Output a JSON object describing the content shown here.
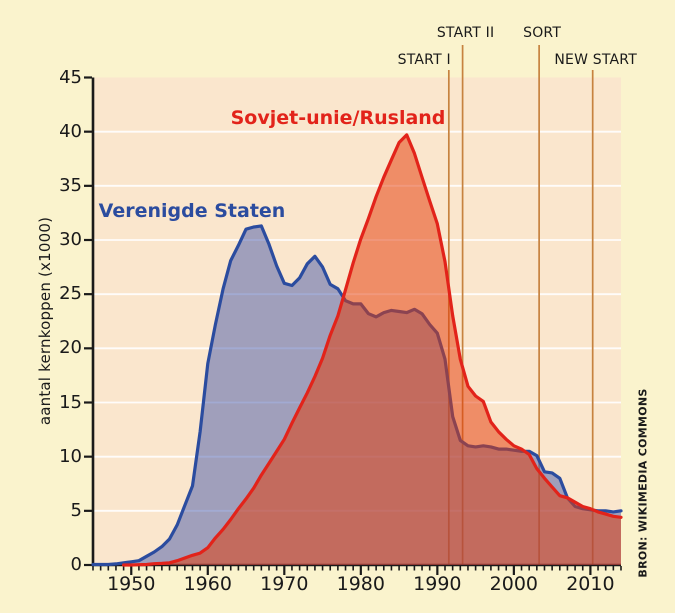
{
  "page": {
    "background_color": "#FAF3CD",
    "text_color": "#1a1a1a"
  },
  "chart_data": {
    "type": "area",
    "title": "",
    "ylabel": "aantal kernkoppen (x1000)",
    "source": "BRON: WIKIMEDIA COMMONS",
    "ylim": [
      0,
      45
    ],
    "y_ticks": [
      0,
      5,
      10,
      15,
      20,
      25,
      30,
      35,
      40,
      45
    ],
    "x_range": [
      1945,
      2014
    ],
    "x_tick_years": [
      1950,
      1960,
      1970,
      1980,
      1990,
      2000,
      2010
    ],
    "grid": "horizontal white lines every 5 units",
    "plot_bg": "#FAE6CD",
    "gridline_color": "#FFFFFF",
    "axis_color": "#1a1a1a",
    "treaty_line_color": "#C6823F",
    "series": [
      {
        "name": "Verenigde Staten",
        "start_year": 1945,
        "line_color": "#2B4C9F",
        "fill_color": "rgba(70,88,170,0.5)",
        "values": [
          0.05,
          0.05,
          0.05,
          0.1,
          0.2,
          0.3,
          0.4,
          0.8,
          1.2,
          1.7,
          2.4,
          3.7,
          5.5,
          7.3,
          12.3,
          18.6,
          22.2,
          25.5,
          28.1,
          29.5,
          31.0,
          31.2,
          31.3,
          29.6,
          27.6,
          26.0,
          25.8,
          26.5,
          27.8,
          28.5,
          27.5,
          25.9,
          25.5,
          24.4,
          24.1,
          24.1,
          23.2,
          22.9,
          23.3,
          23.5,
          23.4,
          23.3,
          23.6,
          23.2,
          22.2,
          21.4,
          19.0,
          13.7,
          11.5,
          11.0,
          10.9,
          11.0,
          10.9,
          10.7,
          10.7,
          10.6,
          10.5,
          10.5,
          10.1,
          8.6,
          8.5,
          8.0,
          6.2,
          5.4,
          5.2,
          5.1,
          5.0,
          5.0,
          4.9,
          5.0
        ]
      },
      {
        "name": "Sovjet-unie/Rusland",
        "start_year": 1949,
        "line_color": "#E2231A",
        "fill_color": "rgba(228,60,10,0.52)",
        "values": [
          0.0,
          0.0,
          0.03,
          0.05,
          0.12,
          0.15,
          0.2,
          0.4,
          0.65,
          0.9,
          1.1,
          1.6,
          2.5,
          3.3,
          4.2,
          5.2,
          6.1,
          7.1,
          8.3,
          9.4,
          10.5,
          11.6,
          13.1,
          14.5,
          15.9,
          17.4,
          19.1,
          21.2,
          23.0,
          25.4,
          27.9,
          30.1,
          32.0,
          34.0,
          35.8,
          37.4,
          39.0,
          39.7,
          38.0,
          35.8,
          33.6,
          31.5,
          28.0,
          23.0,
          19.0,
          16.5,
          15.6,
          15.1,
          13.2,
          12.3,
          11.6,
          11.0,
          10.7,
          10.2,
          8.9,
          8.0,
          7.2,
          6.4,
          6.2,
          5.8,
          5.4,
          5.2,
          4.9,
          4.7,
          4.5,
          4.4
        ]
      }
    ],
    "treaty_lines": [
      {
        "label": "START I",
        "year": 1991.5,
        "row": 2,
        "align": "right"
      },
      {
        "label": "START II",
        "year": 1993.3,
        "row": 1,
        "align": "center"
      },
      {
        "label": "SORT",
        "year": 2003.3,
        "row": 1,
        "align": "center"
      },
      {
        "label": "NEW START",
        "year": 2010.3,
        "row": 2,
        "align": "center"
      }
    ]
  }
}
